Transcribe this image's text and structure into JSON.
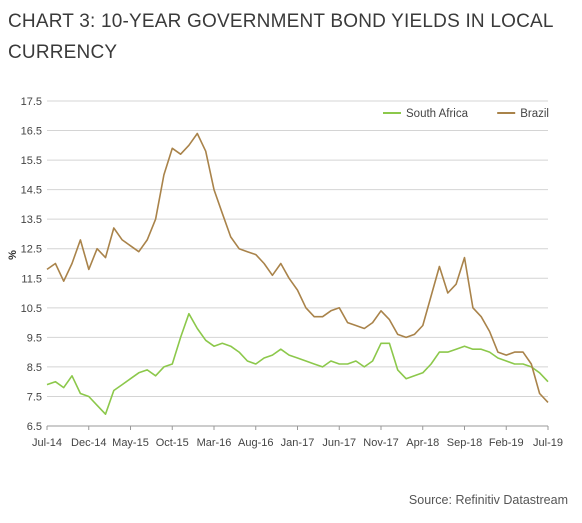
{
  "header": {
    "title": "CHART 3: 10-YEAR GOVERNMENT BOND YIELDS IN LOCAL CURRENCY"
  },
  "footer": {
    "source": "Source: Refinitiv Datastream"
  },
  "chart_data": {
    "type": "line",
    "title": "CHART 3: 10-YEAR GOVERNMENT BOND YIELDS IN LOCAL CURRENCY",
    "ylabel": "%",
    "xlabel": "",
    "ylim": [
      6.5,
      17.5
    ],
    "yticks": [
      "17.5",
      "16.5",
      "15.5",
      "14.5",
      "13.5",
      "12.5",
      "11.5",
      "10.5",
      "9.5",
      "8.5",
      "7.5",
      "6.5"
    ],
    "x_axis": "monthly",
    "x_start": "Jul-14",
    "x_end": "Jul-19",
    "xticks": [
      "Jul-14",
      "Dec-14",
      "May-15",
      "Oct-15",
      "Mar-16",
      "Aug-16",
      "Jan-17",
      "Jun-17",
      "Nov-17",
      "Apr-18",
      "Sep-18",
      "Feb-19",
      "Jul-19"
    ],
    "grid": true,
    "legend_position": "top-right",
    "x": [
      "Jul-14",
      "Aug-14",
      "Sep-14",
      "Oct-14",
      "Nov-14",
      "Dec-14",
      "Jan-15",
      "Feb-15",
      "Mar-15",
      "Apr-15",
      "May-15",
      "Jun-15",
      "Jul-15",
      "Aug-15",
      "Sep-15",
      "Oct-15",
      "Nov-15",
      "Dec-15",
      "Jan-16",
      "Feb-16",
      "Mar-16",
      "Apr-16",
      "May-16",
      "Jun-16",
      "Jul-16",
      "Aug-16",
      "Sep-16",
      "Oct-16",
      "Nov-16",
      "Dec-16",
      "Jan-17",
      "Feb-17",
      "Mar-17",
      "Apr-17",
      "May-17",
      "Jun-17",
      "Jul-17",
      "Aug-17",
      "Sep-17",
      "Oct-17",
      "Nov-17",
      "Dec-17",
      "Jan-18",
      "Feb-18",
      "Mar-18",
      "Apr-18",
      "May-18",
      "Jun-18",
      "Jul-18",
      "Aug-18",
      "Sep-18",
      "Oct-18",
      "Nov-18",
      "Dec-18",
      "Jan-19",
      "Feb-19",
      "Mar-19",
      "Apr-19",
      "May-19",
      "Jun-19",
      "Jul-19"
    ],
    "series": [
      {
        "name": "South Africa",
        "color": "#8cc84b",
        "values": [
          7.9,
          8.0,
          7.8,
          8.2,
          7.6,
          7.5,
          7.2,
          6.9,
          7.7,
          7.9,
          8.1,
          8.3,
          8.4,
          8.2,
          8.5,
          8.6,
          9.5,
          10.3,
          9.8,
          9.4,
          9.2,
          9.3,
          9.2,
          9.0,
          8.7,
          8.6,
          8.8,
          8.9,
          9.1,
          8.9,
          8.8,
          8.7,
          8.6,
          8.5,
          8.7,
          8.6,
          8.6,
          8.7,
          8.5,
          8.7,
          9.3,
          9.3,
          8.4,
          8.1,
          8.2,
          8.3,
          8.6,
          9.0,
          9.0,
          9.1,
          9.2,
          9.1,
          9.1,
          9.0,
          8.8,
          8.7,
          8.6,
          8.6,
          8.5,
          8.3,
          8.0
        ]
      },
      {
        "name": "Brazil",
        "color": "#a9834a",
        "values": [
          11.8,
          12.0,
          11.4,
          12.0,
          12.8,
          11.8,
          12.5,
          12.2,
          13.2,
          12.8,
          12.6,
          12.4,
          12.8,
          13.5,
          15.0,
          15.9,
          15.7,
          16.0,
          16.4,
          15.8,
          14.5,
          13.7,
          12.9,
          12.5,
          12.4,
          12.3,
          12.0,
          11.6,
          12.0,
          11.5,
          11.1,
          10.5,
          10.2,
          10.2,
          10.4,
          10.5,
          10.0,
          9.9,
          9.8,
          10.0,
          10.4,
          10.1,
          9.6,
          9.5,
          9.6,
          9.9,
          10.9,
          11.9,
          11.0,
          11.3,
          12.2,
          10.5,
          10.2,
          9.7,
          9.0,
          8.9,
          9.0,
          9.0,
          8.6,
          7.6,
          7.3
        ]
      }
    ]
  }
}
